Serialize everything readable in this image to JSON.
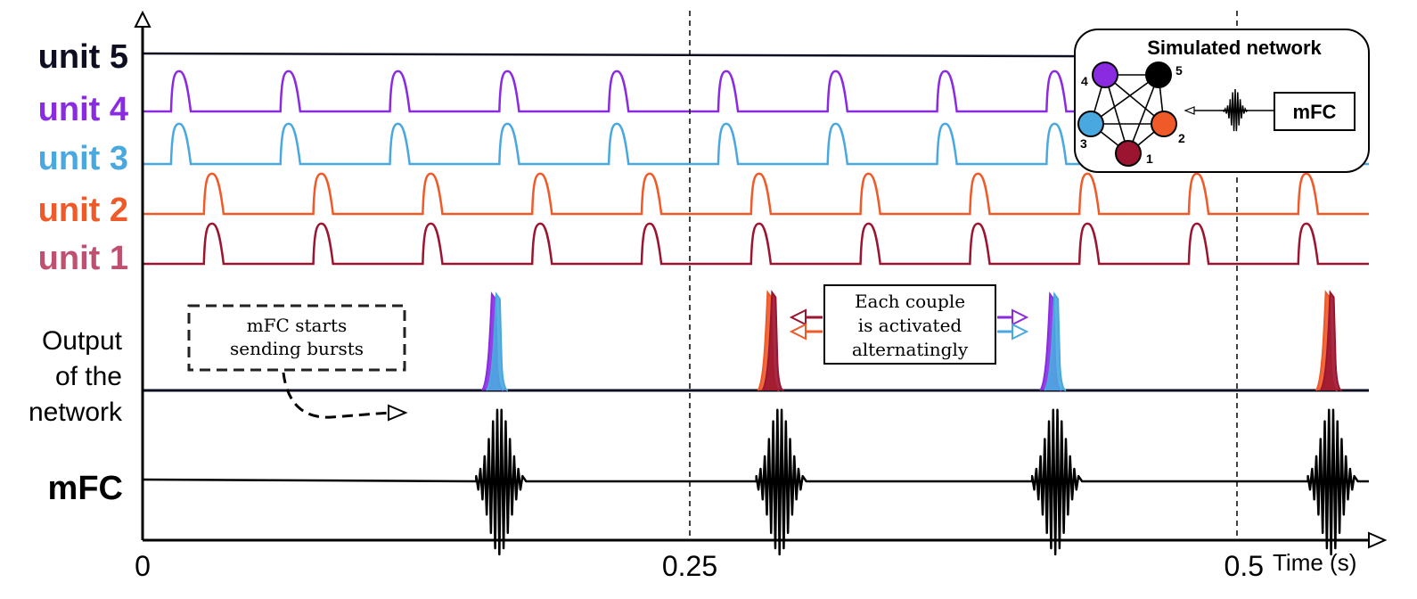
{
  "chart_data": {
    "type": "line",
    "xlabel": "Time (s)",
    "x_ticks": [
      "0",
      "0.25",
      "0.5"
    ],
    "xlim": [
      0,
      0.56
    ],
    "vlines": [
      0.25,
      0.5
    ],
    "rows": [
      {
        "name": "unit 5",
        "color": "#0e0e22",
        "kind": "flat"
      },
      {
        "name": "unit 4",
        "color": "#8a2be2",
        "kind": "pulses",
        "period_s": 0.05,
        "first_s": 0.0175,
        "width_s": 0.009
      },
      {
        "name": "unit 3",
        "color": "#4aa8e0",
        "kind": "pulses",
        "period_s": 0.05,
        "first_s": 0.0175,
        "width_s": 0.009
      },
      {
        "name": "unit 2",
        "color": "#f05a28",
        "kind": "pulses",
        "period_s": 0.05,
        "first_s": 0.0325,
        "width_s": 0.009
      },
      {
        "name": "unit 1",
        "color": "#9b1530",
        "kind": "pulses",
        "period_s": 0.05,
        "first_s": 0.0325,
        "width_s": 0.009
      }
    ],
    "output": {
      "name_lines": [
        "Output",
        "of the",
        "network"
      ],
      "bursts": [
        {
          "t": 0.162,
          "pair": "unit 4 / unit 3",
          "colors": [
            "#8a2be2",
            "#4aa8e0"
          ]
        },
        {
          "t": 0.288,
          "pair": "unit 2 / unit 1",
          "colors": [
            "#f05a28",
            "#9b1530"
          ]
        },
        {
          "t": 0.417,
          "pair": "unit 4 / unit 3",
          "colors": [
            "#8a2be2",
            "#4aa8e0"
          ]
        },
        {
          "t": 0.543,
          "pair": "unit 2 / unit 1",
          "colors": [
            "#f05a28",
            "#9b1530"
          ]
        }
      ]
    },
    "mfc": {
      "name": "mFC",
      "color": "#000000",
      "burst_times": [
        0.163,
        0.291,
        0.417,
        0.543
      ]
    },
    "annotations": {
      "start_note": [
        "mFC starts",
        "sending bursts"
      ],
      "couple_note": [
        "Each couple",
        "is activated",
        "alternatingly"
      ]
    },
    "inset": {
      "title": "Simulated network",
      "source": "mFC",
      "nodes": [
        {
          "id": "1",
          "color": "#9b1530"
        },
        {
          "id": "2",
          "color": "#f05a28"
        },
        {
          "id": "3",
          "color": "#4aa8e0"
        },
        {
          "id": "4",
          "color": "#8a2be2"
        },
        {
          "id": "5",
          "color": "#000000"
        }
      ]
    }
  }
}
